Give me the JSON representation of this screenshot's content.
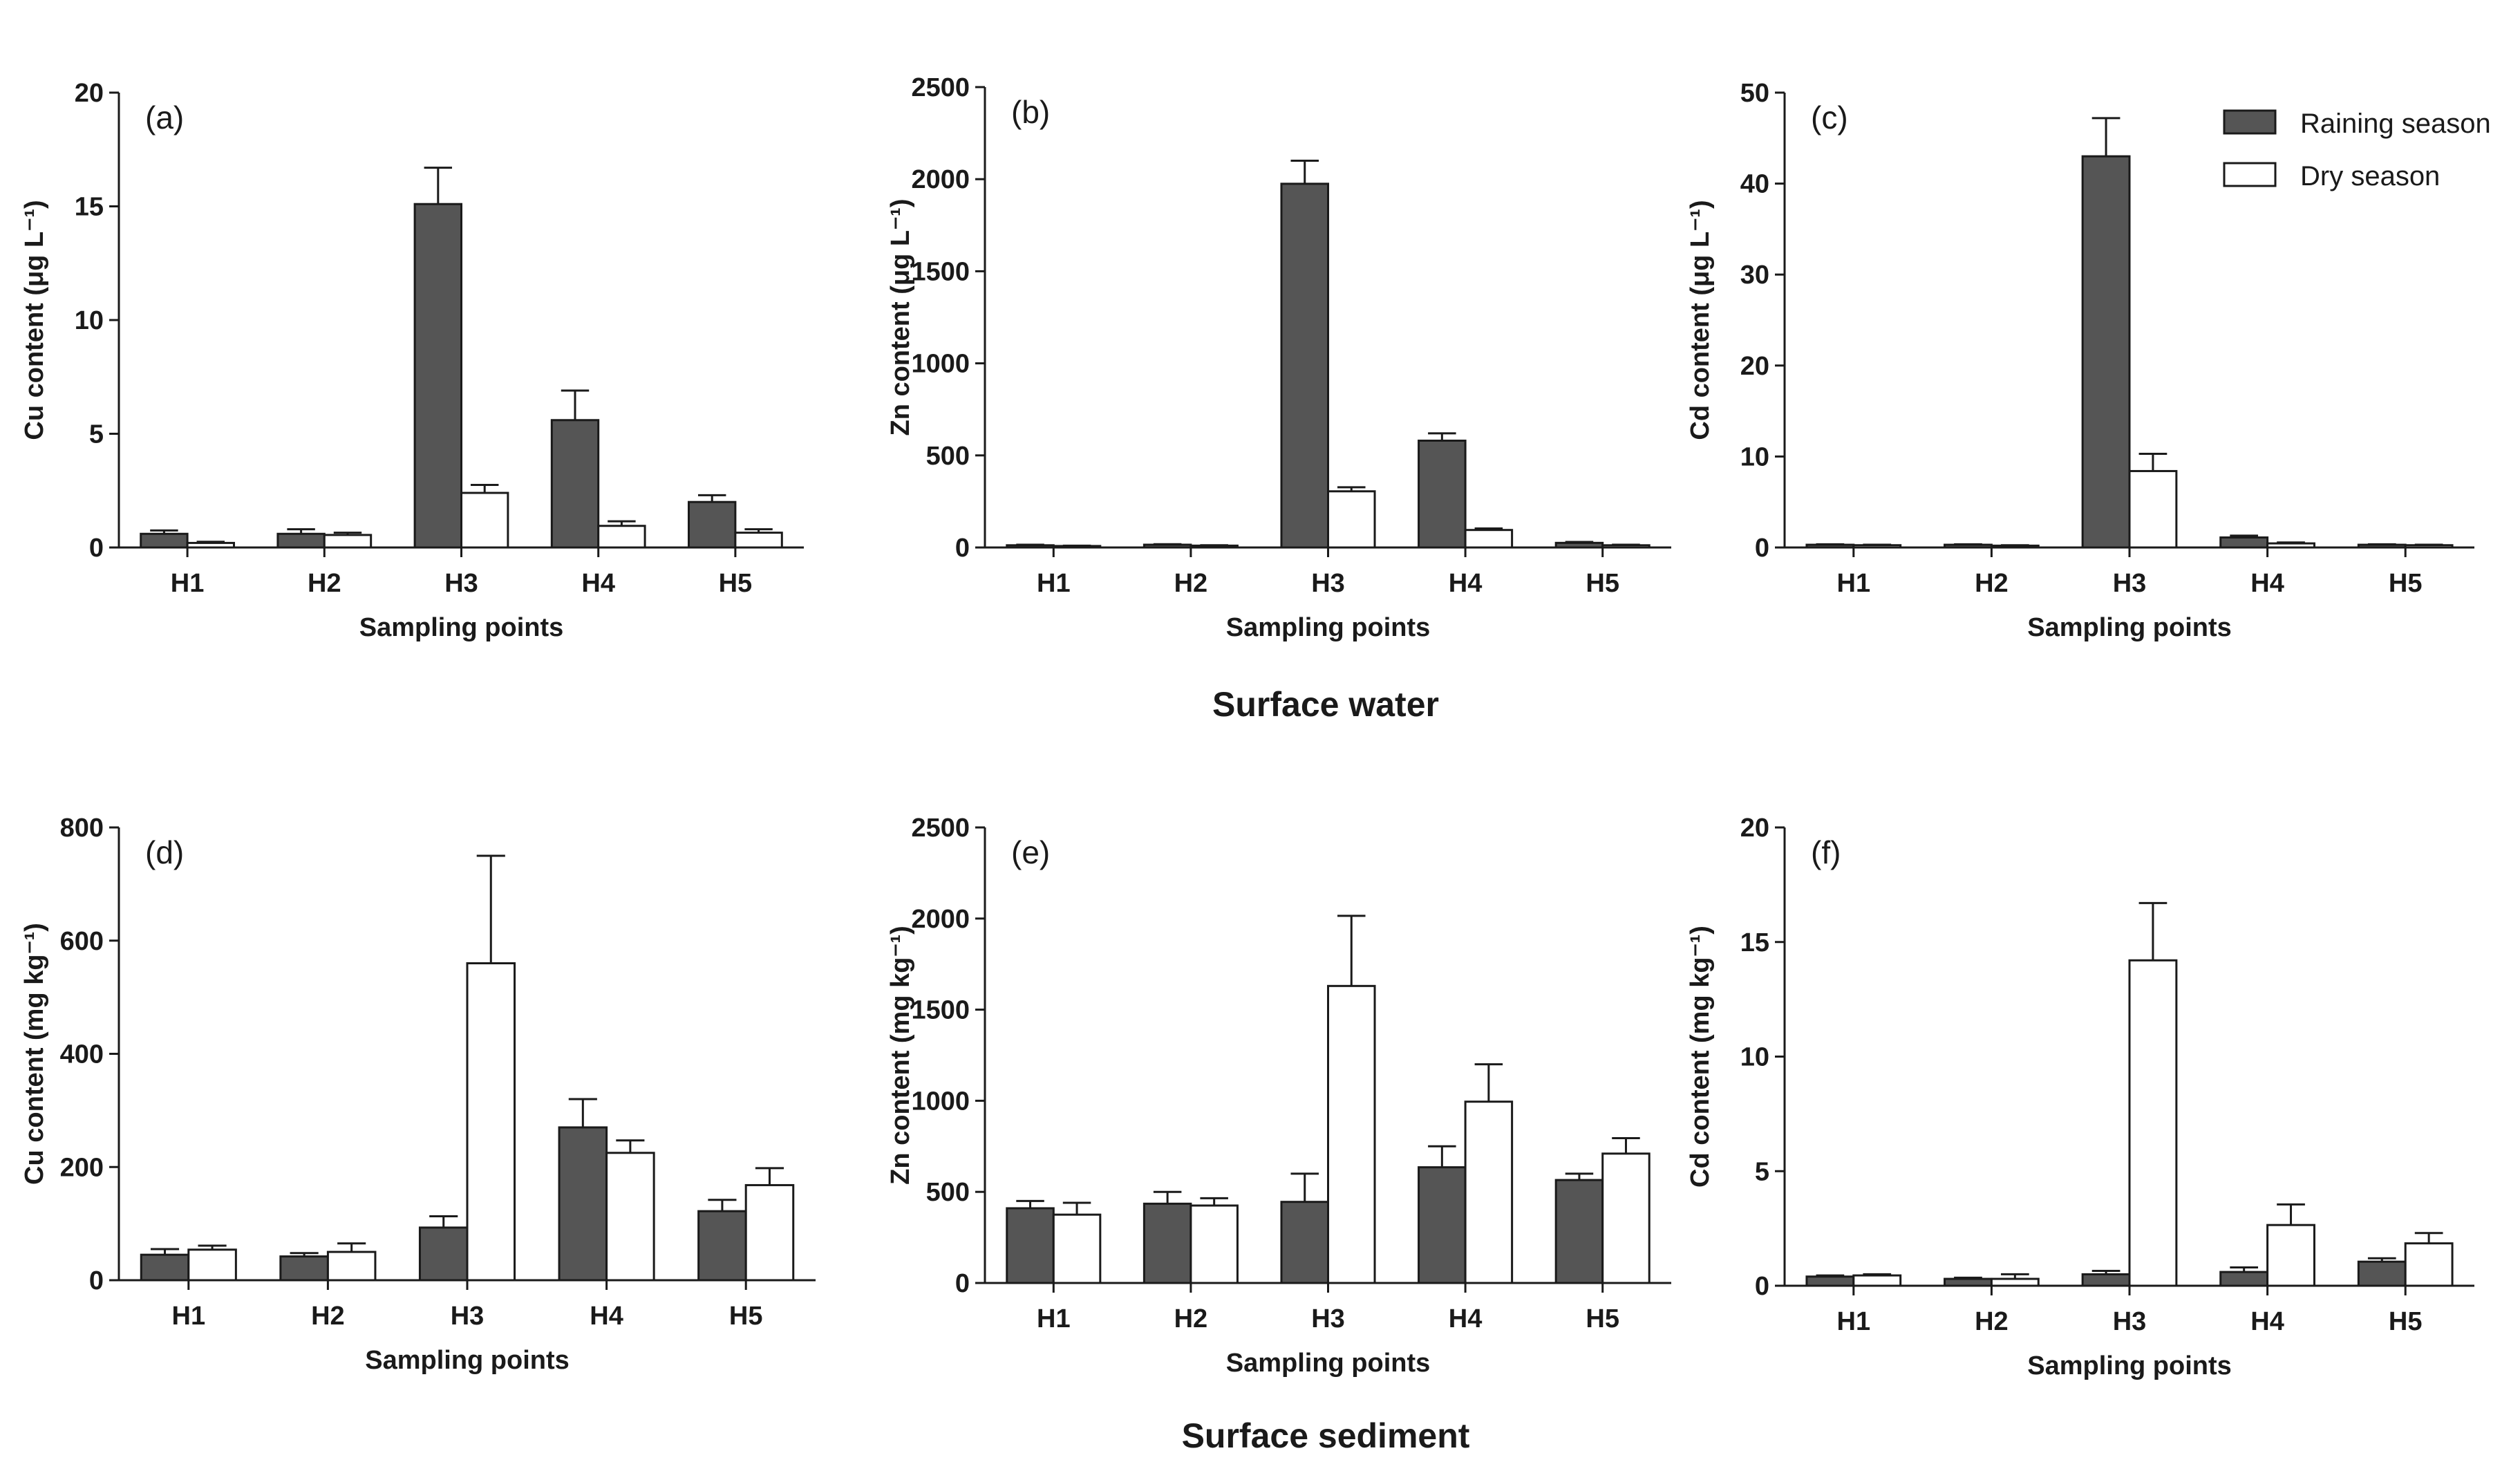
{
  "section_titles": {
    "top": "Surface water",
    "bottom": "Surface sediment"
  },
  "legend": {
    "raining": {
      "label": "Raining season",
      "color": "#555555"
    },
    "dry": {
      "label": "Dry season",
      "color": "#ffffff"
    }
  },
  "chart_data": [
    {
      "type": "bar",
      "panel": "(a)",
      "categories": [
        "H1",
        "H2",
        "H3",
        "H4",
        "H5"
      ],
      "xlabel": "Sampling points",
      "ylabel": "Cu content (μg L⁻¹)",
      "ylim": [
        0,
        20
      ],
      "yticks": [
        0,
        5,
        10,
        15,
        20
      ],
      "series": [
        {
          "name": "Raining season",
          "values": [
            0.6,
            0.6,
            15.1,
            5.6,
            2.0
          ],
          "errors": [
            0.15,
            0.2,
            1.6,
            1.3,
            0.3
          ]
        },
        {
          "name": "Dry season",
          "values": [
            0.2,
            0.55,
            2.4,
            0.95,
            0.65
          ],
          "errors": [
            0.05,
            0.1,
            0.35,
            0.2,
            0.15
          ]
        }
      ]
    },
    {
      "type": "bar",
      "panel": "(b)",
      "categories": [
        "H1",
        "H2",
        "H3",
        "H4",
        "H5"
      ],
      "xlabel": "Sampling points",
      "ylabel": "Zn content (μg L⁻¹)",
      "ylim": [
        0,
        2500
      ],
      "yticks": [
        0,
        500,
        1000,
        1500,
        2000,
        2500
      ],
      "series": [
        {
          "name": "Raining season",
          "values": [
            12,
            15,
            1975,
            580,
            25
          ],
          "errors": [
            3,
            3,
            125,
            40,
            5
          ]
        },
        {
          "name": "Dry season",
          "values": [
            8,
            10,
            305,
            95,
            12
          ],
          "errors": [
            2,
            2,
            22,
            8,
            3
          ]
        }
      ]
    },
    {
      "type": "bar",
      "panel": "(c)",
      "categories": [
        "H1",
        "H2",
        "H3",
        "H4",
        "H5"
      ],
      "xlabel": "Sampling points",
      "ylabel": "Cd content (μg L⁻¹)",
      "ylim": [
        0,
        50
      ],
      "yticks": [
        0,
        10,
        20,
        30,
        40,
        50
      ],
      "series": [
        {
          "name": "Raining season",
          "values": [
            0.3,
            0.3,
            43.0,
            1.1,
            0.3
          ],
          "errors": [
            0.05,
            0.05,
            4.2,
            0.2,
            0.05
          ]
        },
        {
          "name": "Dry season",
          "values": [
            0.25,
            0.2,
            8.4,
            0.45,
            0.25
          ],
          "errors": [
            0.05,
            0.05,
            1.9,
            0.1,
            0.05
          ]
        }
      ]
    },
    {
      "type": "bar",
      "panel": "(d)",
      "categories": [
        "H1",
        "H2",
        "H3",
        "H4",
        "H5"
      ],
      "xlabel": "Sampling points",
      "ylabel": "Cu content (mg kg⁻¹)",
      "ylim": [
        0,
        800
      ],
      "yticks": [
        0,
        200,
        400,
        600,
        800
      ],
      "series": [
        {
          "name": "Raining season",
          "values": [
            45,
            42,
            93,
            270,
            122
          ],
          "errors": [
            10,
            6,
            20,
            50,
            20
          ]
        },
        {
          "name": "Dry season",
          "values": [
            54,
            50,
            560,
            225,
            168
          ],
          "errors": [
            7,
            15,
            190,
            22,
            30
          ]
        }
      ]
    },
    {
      "type": "bar",
      "panel": "(e)",
      "categories": [
        "H1",
        "H2",
        "H3",
        "H4",
        "H5"
      ],
      "xlabel": "Sampling points",
      "ylabel": "Zn content (mg kg⁻¹)",
      "ylim": [
        0,
        2500
      ],
      "yticks": [
        0,
        500,
        1000,
        1500,
        2000,
        2500
      ],
      "series": [
        {
          "name": "Raining season",
          "values": [
            410,
            435,
            445,
            635,
            565
          ],
          "errors": [
            40,
            65,
            155,
            115,
            35
          ]
        },
        {
          "name": "Dry season",
          "values": [
            375,
            425,
            1630,
            995,
            710
          ],
          "errors": [
            65,
            40,
            385,
            205,
            85
          ]
        }
      ]
    },
    {
      "type": "bar",
      "panel": "(f)",
      "categories": [
        "H1",
        "H2",
        "H3",
        "H4",
        "H5"
      ],
      "xlabel": "Sampling points",
      "ylabel": "Cd content (mg kg⁻¹)",
      "ylim": [
        0,
        20
      ],
      "yticks": [
        0,
        5,
        10,
        15,
        20
      ],
      "series": [
        {
          "name": "Raining season",
          "values": [
            0.4,
            0.3,
            0.5,
            0.6,
            1.05
          ],
          "errors": [
            0.05,
            0.05,
            0.15,
            0.2,
            0.15
          ]
        },
        {
          "name": "Dry season",
          "values": [
            0.45,
            0.3,
            14.2,
            2.65,
            1.85
          ],
          "errors": [
            0.05,
            0.2,
            2.5,
            0.9,
            0.45
          ]
        }
      ]
    }
  ]
}
